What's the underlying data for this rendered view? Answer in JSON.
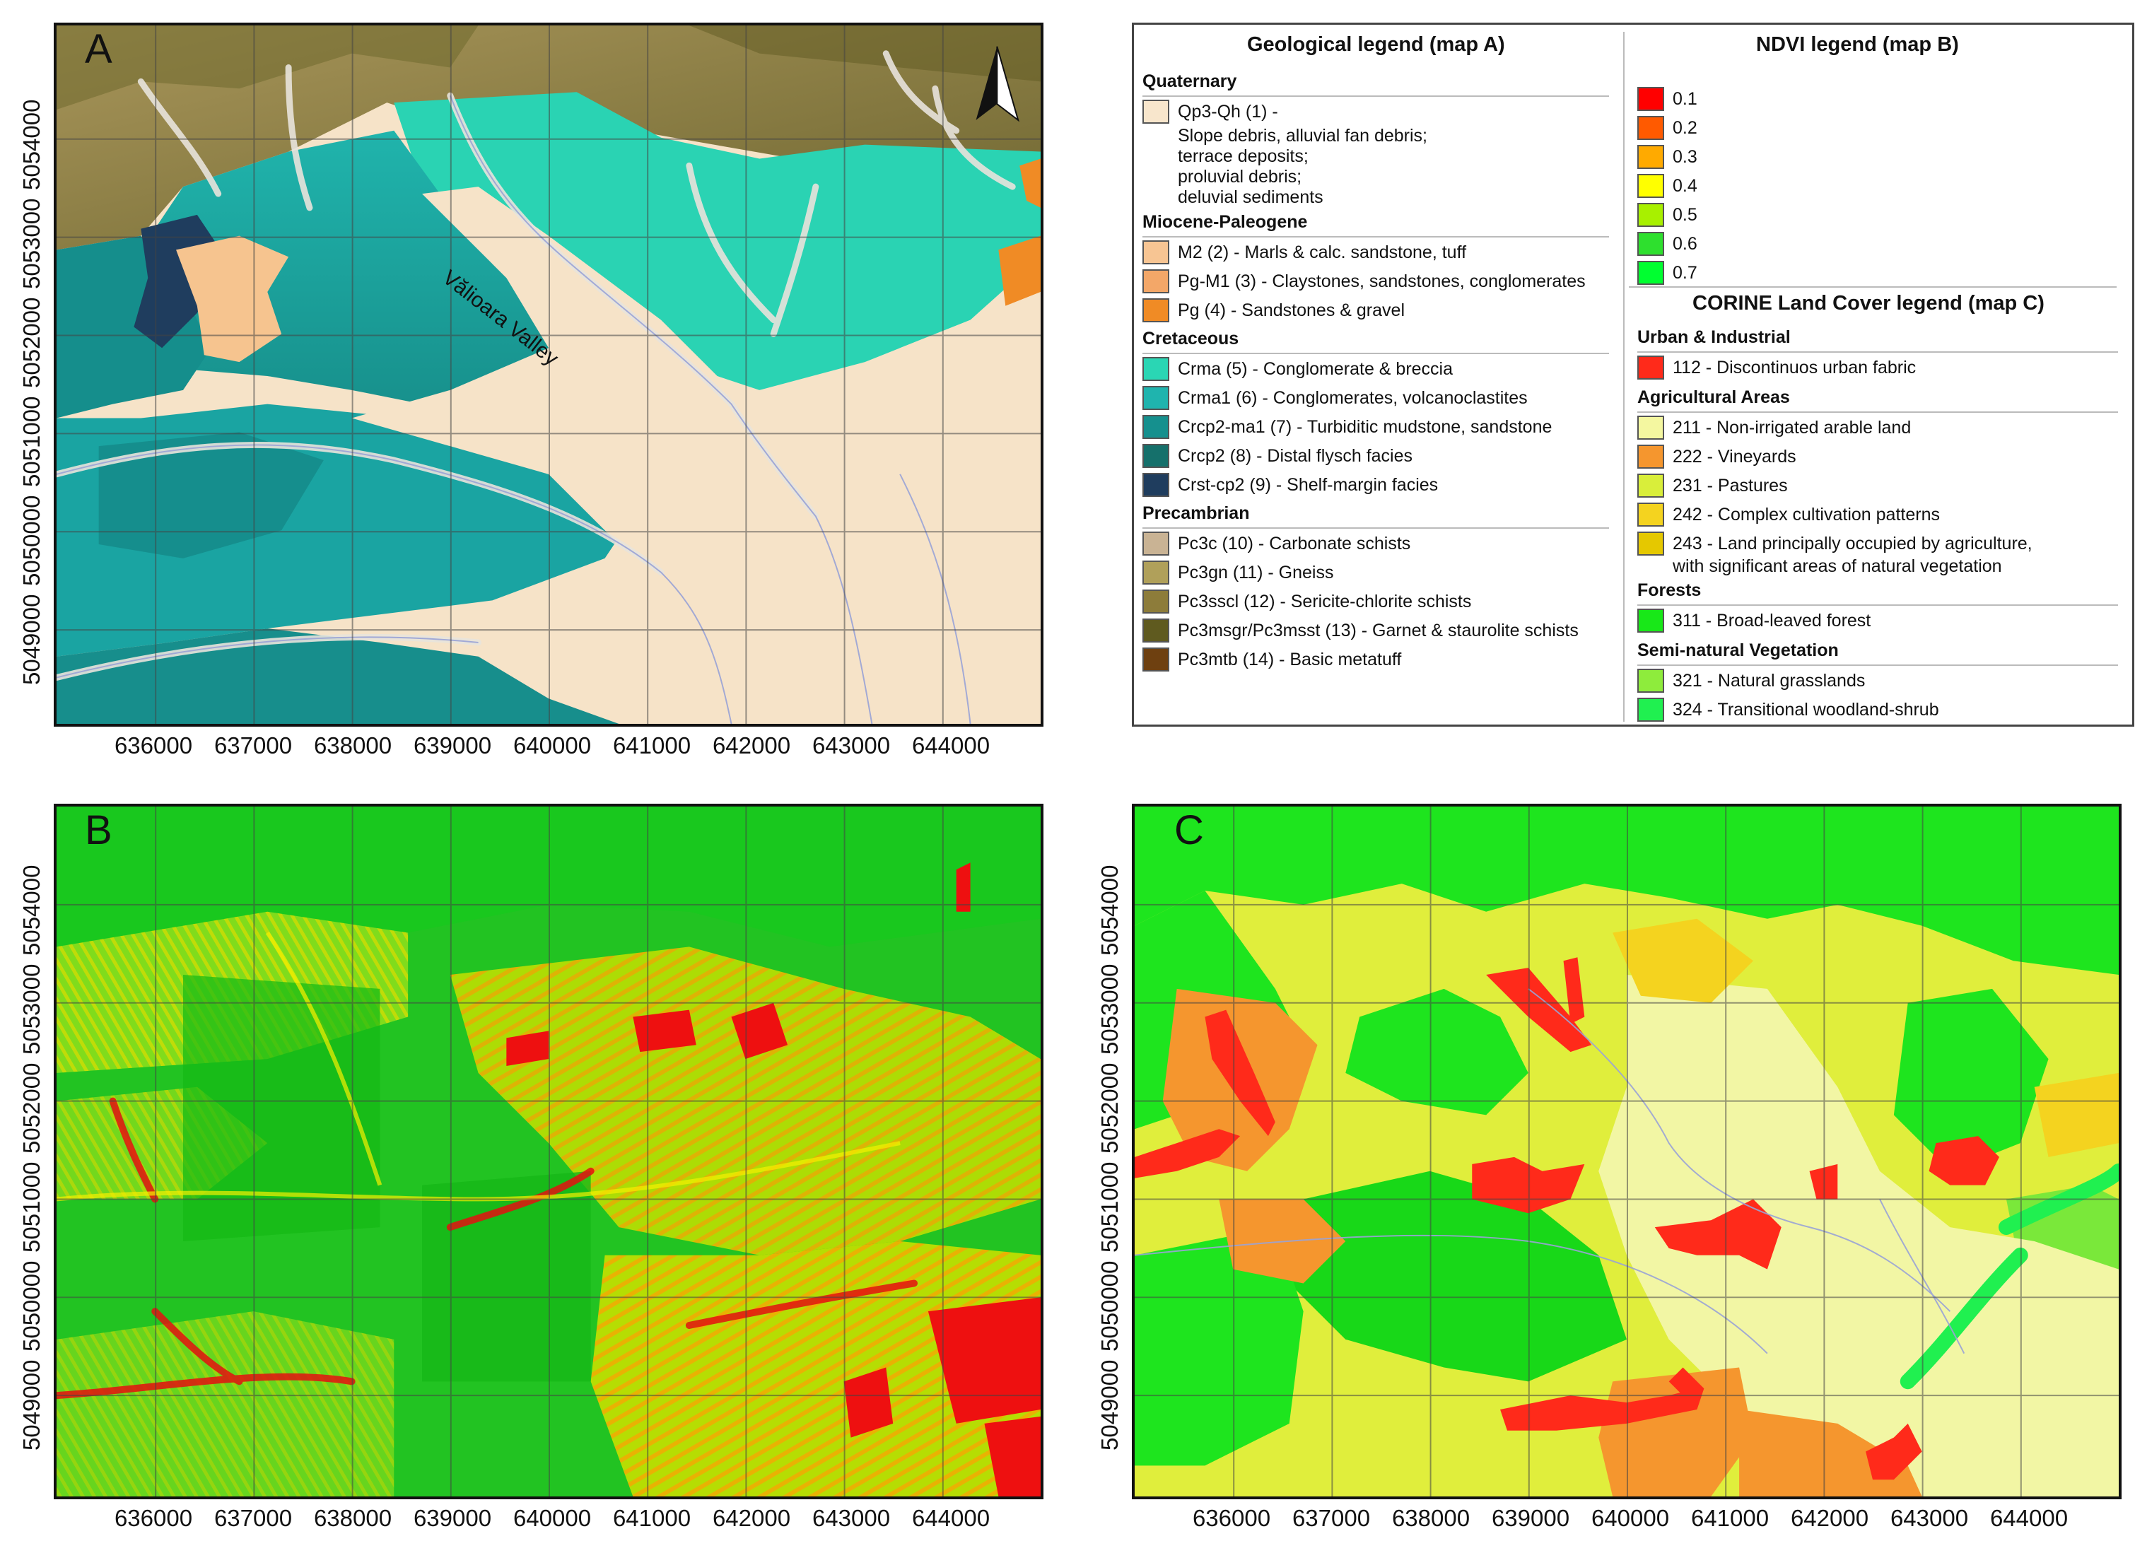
{
  "panels": {
    "a": {
      "letter": "A",
      "river_label": "Vălioara Valley"
    },
    "b": {
      "letter": "B"
    },
    "c": {
      "letter": "C"
    }
  },
  "axes": {
    "x_ticks": [
      "636000",
      "637000",
      "638000",
      "639000",
      "640000",
      "641000",
      "642000",
      "643000",
      "644000"
    ],
    "y_ticks": [
      "5049000",
      "5050000",
      "5051000",
      "5052000",
      "5053000",
      "5054000"
    ]
  },
  "geo_legend": {
    "title": "Geological legend (map A)",
    "groups": [
      {
        "name": "Quaternary",
        "items": [
          {
            "label": "Qp3-Qh (1) -",
            "color": "#f8e6cc",
            "extra": [
              "Slope debris, alluvial fan debris;",
              "terrace deposits;",
              "proluvial debris;",
              "deluvial sediments"
            ]
          }
        ]
      },
      {
        "name": "Miocene-Paleogene",
        "items": [
          {
            "label": "M2 (2) - Marls & calc. sandstone, tuff",
            "color": "#f7c593"
          },
          {
            "label": "Pg-M1 (3) - Claystones, sandstones, conglomerates",
            "color": "#f3a768"
          },
          {
            "label": "Pg (4) - Sandstones & gravel",
            "color": "#f08b25"
          }
        ]
      },
      {
        "name": "Cretaceous",
        "items": [
          {
            "label": "Crma (5) - Conglomerate & breccia",
            "color": "#2ad6b4"
          },
          {
            "label": "Crma1 (6) -  Conglomerates, volcanoclastites",
            "color": "#1fb4ae"
          },
          {
            "label": "Crcp2-ma1 (7) - Turbiditic mudstone, sandstone",
            "color": "#15908e"
          },
          {
            "label": "Crcp2 (8) - Distal flysch facies",
            "color": "#15706b"
          },
          {
            "label": "Crst-cp2 (9) - Shelf-margin facies",
            "color": "#1f3d5e"
          }
        ]
      },
      {
        "name": "Precambrian",
        "items": [
          {
            "label": "Pc3c (10) - Carbonate schists",
            "color": "#c9b394"
          },
          {
            "label": "Pc3gn (11) - Gneiss",
            "color": "#b0a05a"
          },
          {
            "label": "Pc3sscl (12) - Sericite-chlorite schists",
            "color": "#8d7c3a"
          },
          {
            "label": "Pc3msgr/Pc3msst (13) - Garnet & staurolite schists",
            "color": "#5f5a1f"
          },
          {
            "label": "Pc3mtb (14) - Basic metatuff",
            "color": "#6e4010"
          }
        ]
      }
    ]
  },
  "ndvi_legend": {
    "title": "NDVI legend (map B)",
    "items": [
      {
        "label": "0.1",
        "color": "#ff0000"
      },
      {
        "label": "0.2",
        "color": "#ff5a00"
      },
      {
        "label": "0.3",
        "color": "#ffaa00"
      },
      {
        "label": "0.4",
        "color": "#ffff00"
      },
      {
        "label": "0.5",
        "color": "#a8f000"
      },
      {
        "label": "0.6",
        "color": "#2ee02e"
      },
      {
        "label": "0.7",
        "color": "#00ff30"
      }
    ]
  },
  "corine_legend": {
    "title": "CORINE Land Cover legend (map C)",
    "groups": [
      {
        "name": "Urban & Industrial",
        "items": [
          {
            "label": "112 - Discontinuos urban fabric",
            "color": "#ff2a1a"
          }
        ]
      },
      {
        "name": "Agricultural Areas",
        "items": [
          {
            "label": "211 - Non-irrigated arable land",
            "color": "#f4f7a0"
          },
          {
            "label": "222 - Vineyards",
            "color": "#f5962e"
          },
          {
            "label": "231 - Pastures",
            "color": "#d9ee3a"
          },
          {
            "label": "242 - Complex cultivation patterns",
            "color": "#f4d31f"
          },
          {
            "label": "243 - Land principally occupied by agriculture,",
            "color": "#e5c800",
            "extra": [
              "with significant areas of natural vegetation"
            ]
          }
        ]
      },
      {
        "name": "Forests",
        "items": [
          {
            "label": "311 - Broad-leaved forest",
            "color": "#18e818"
          }
        ]
      },
      {
        "name": "Semi-natural Vegetation",
        "items": [
          {
            "label": "321 - Natural grasslands",
            "color": "#8eec3c"
          },
          {
            "label": "324 - Transitional woodland-shrub",
            "color": "#20f050"
          }
        ]
      }
    ]
  }
}
